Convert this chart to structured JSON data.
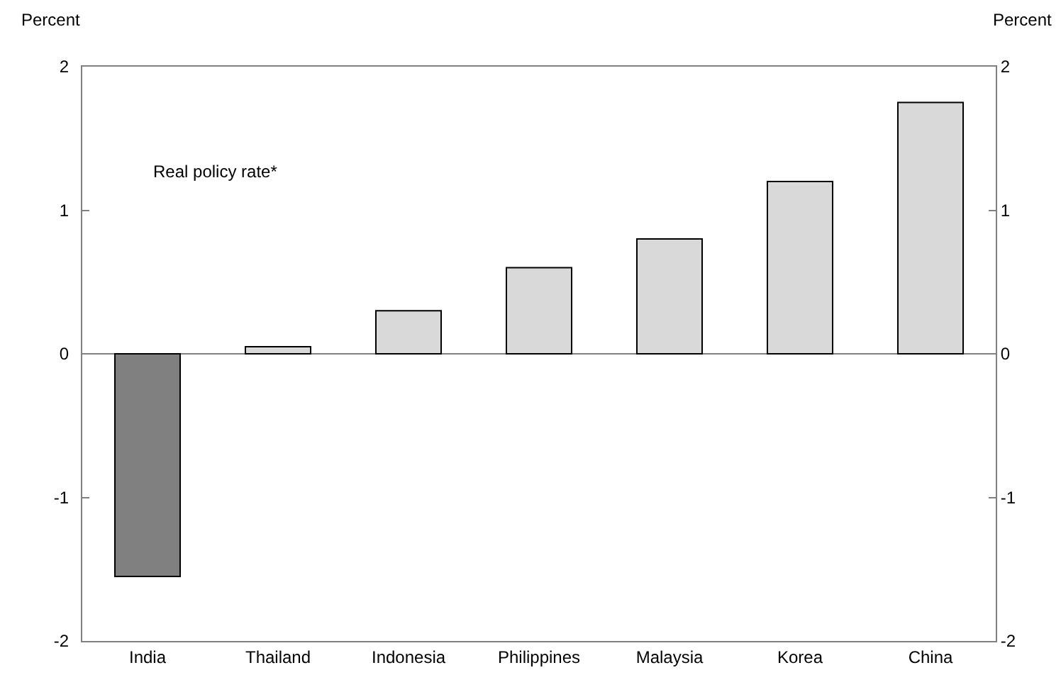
{
  "chart_data": {
    "type": "bar",
    "ylabel": "Percent",
    "y2label": "Percent",
    "annotations": [
      "Real policy rate*"
    ],
    "categories": [
      "India",
      "Thailand",
      "Indonesia",
      "Philippines",
      "Malaysia",
      "Korea",
      "China"
    ],
    "values": [
      -1.55,
      0.05,
      0.3,
      0.6,
      0.8,
      1.2,
      1.75
    ],
    "colors": [
      "#808080",
      "#d9d9d9",
      "#d9d9d9",
      "#d9d9d9",
      "#d9d9d9",
      "#d9d9d9",
      "#d9d9d9"
    ],
    "ylim": [
      -2,
      2
    ],
    "yticks": [
      -2,
      -1,
      0,
      1,
      2
    ],
    "y2lim": [
      -2,
      2
    ],
    "y2ticks": [
      -2,
      -1,
      0,
      1,
      2
    ],
    "legend": false
  }
}
